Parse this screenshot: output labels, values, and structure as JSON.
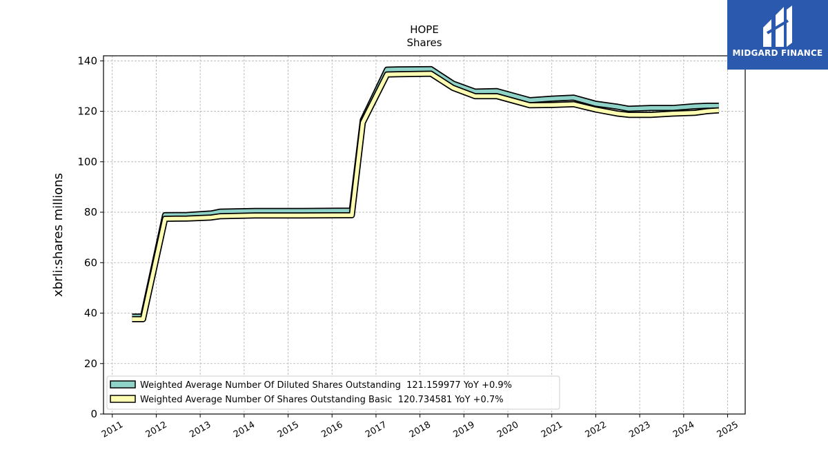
{
  "logo": {
    "text": "MIDGARD FINANCE",
    "color": "#2b59ad"
  },
  "chart_data": {
    "type": "line",
    "title": "HOPE",
    "subtitle": "Shares",
    "xlabel": "",
    "ylabel": "xbrli:shares millions",
    "xlim": [
      2010.8,
      2025.4
    ],
    "ylim": [
      0,
      142
    ],
    "x_ticks": [
      "2011",
      "2012",
      "2013",
      "2014",
      "2015",
      "2016",
      "2017",
      "2018",
      "2019",
      "2020",
      "2021",
      "2022",
      "2023",
      "2024",
      "2025"
    ],
    "y_ticks": [
      "0",
      "20",
      "40",
      "60",
      "80",
      "100",
      "120",
      "140"
    ],
    "grid": true,
    "legend_position": "lower-left",
    "series": [
      {
        "name": "Weighted Average Number Of Diluted Shares Outstanding  121.159977 YoY +0.9%",
        "color": "#8fd3c8",
        "x": [
          2011.45,
          2011.7,
          2012.2,
          2012.7,
          2013.25,
          2013.45,
          2014.25,
          2015.3,
          2016.45,
          2016.7,
          2017.25,
          2017.5,
          2018.25,
          2018.75,
          2019.25,
          2019.75,
          2020.5,
          2021.0,
          2021.5,
          2022.0,
          2022.5,
          2022.75,
          2023.25,
          2023.75,
          2024.25,
          2024.55,
          2024.8
        ],
        "y": [
          38.6,
          38.6,
          78.8,
          78.9,
          79.5,
          80.2,
          80.5,
          80.5,
          80.6,
          116.5,
          136.5,
          136.6,
          136.7,
          131.0,
          127.8,
          128.0,
          124.4,
          125.0,
          125.4,
          123.0,
          121.8,
          121.0,
          121.3,
          121.3,
          122.0,
          122.2,
          122.2
        ]
      },
      {
        "name": "Weighted Average Number Of Shares Outstanding Basic  120.734581 YoY +0.7%",
        "color": "#ffffb3",
        "x": [
          2011.45,
          2011.7,
          2012.2,
          2012.7,
          2013.25,
          2013.45,
          2014.25,
          2015.3,
          2016.45,
          2016.7,
          2017.25,
          2017.5,
          2018.25,
          2018.75,
          2019.25,
          2019.75,
          2020.5,
          2021.0,
          2021.5,
          2022.0,
          2022.5,
          2022.75,
          2023.25,
          2023.75,
          2024.25,
          2024.55,
          2024.8
        ],
        "y": [
          37.6,
          37.6,
          77.4,
          77.5,
          77.9,
          78.4,
          78.7,
          78.7,
          78.8,
          115.5,
          134.6,
          134.7,
          134.9,
          129.3,
          126.0,
          126.0,
          122.4,
          122.5,
          122.8,
          120.7,
          119.1,
          118.6,
          118.6,
          119.1,
          119.4,
          120.1,
          120.4
        ]
      }
    ]
  }
}
